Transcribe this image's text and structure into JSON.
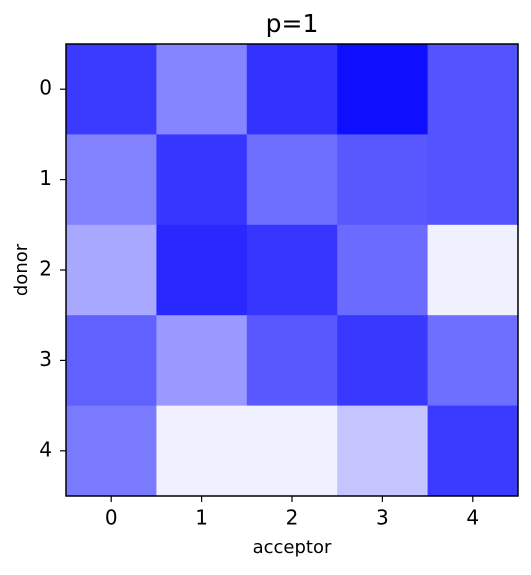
{
  "chart_data": {
    "type": "heatmap",
    "title": "p=1",
    "x_label": "acceptor",
    "y_label": "donor",
    "x_categories": [
      "0",
      "1",
      "2",
      "3",
      "4"
    ],
    "y_categories": [
      "0",
      "1",
      "2",
      "3",
      "4"
    ],
    "values": [
      [
        0.77,
        0.48,
        0.8,
        0.94,
        0.67
      ],
      [
        0.49,
        0.79,
        0.57,
        0.65,
        0.67
      ],
      [
        0.34,
        0.84,
        0.79,
        0.58,
        0.06
      ],
      [
        0.62,
        0.4,
        0.65,
        0.78,
        0.57
      ],
      [
        0.52,
        0.06,
        0.06,
        0.23,
        0.77
      ]
    ],
    "zlim": [
      0,
      1
    ],
    "colors": [
      "#ffffff",
      "#0000ff"
    ]
  }
}
